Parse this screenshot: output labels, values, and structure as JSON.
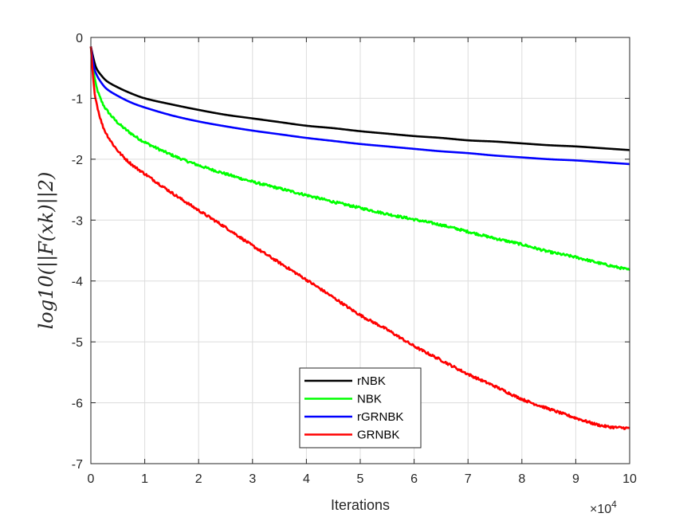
{
  "chart_data": {
    "type": "line",
    "xlabel": "Iterations",
    "ylabel": "log10(||F(xk)||2)",
    "x_exponent_label": "×10",
    "x_exponent_power": "4",
    "xlim": [
      0,
      10
    ],
    "ylim": [
      -7,
      0
    ],
    "xticks": [
      "0",
      "1",
      "2",
      "3",
      "4",
      "5",
      "6",
      "7",
      "8",
      "9",
      "10"
    ],
    "yticks": [
      "0",
      "-1",
      "-2",
      "-3",
      "-4",
      "-5",
      "-6",
      "-7"
    ],
    "grid": true,
    "legend_position": "bottom-center",
    "x": [
      0,
      0.05,
      0.1,
      0.2,
      0.3,
      0.5,
      0.75,
      1,
      1.5,
      2,
      2.5,
      3,
      3.5,
      4,
      4.5,
      5,
      5.5,
      6,
      6.5,
      7,
      7.5,
      8,
      8.5,
      9,
      9.5,
      10
    ],
    "series": [
      {
        "name": "rNBK",
        "color": "#000000",
        "noise": 0,
        "values": [
          -0.15,
          -0.35,
          -0.5,
          -0.63,
          -0.72,
          -0.82,
          -0.92,
          -1.0,
          -1.1,
          -1.19,
          -1.27,
          -1.33,
          -1.39,
          -1.45,
          -1.49,
          -1.54,
          -1.58,
          -1.62,
          -1.65,
          -1.69,
          -1.71,
          -1.74,
          -1.77,
          -1.79,
          -1.82,
          -1.85
        ]
      },
      {
        "name": "NBK",
        "color": "#00ff00",
        "noise": 0.02,
        "values": [
          -0.15,
          -0.55,
          -0.8,
          -1.05,
          -1.2,
          -1.4,
          -1.58,
          -1.72,
          -1.93,
          -2.1,
          -2.24,
          -2.37,
          -2.48,
          -2.59,
          -2.7,
          -2.8,
          -2.9,
          -2.99,
          -3.08,
          -3.19,
          -3.3,
          -3.4,
          -3.52,
          -3.61,
          -3.72,
          -3.82
        ]
      },
      {
        "name": "rGRNBK",
        "color": "#0000ff",
        "noise": 0,
        "values": [
          -0.15,
          -0.45,
          -0.6,
          -0.75,
          -0.85,
          -0.96,
          -1.07,
          -1.15,
          -1.28,
          -1.38,
          -1.46,
          -1.53,
          -1.59,
          -1.65,
          -1.7,
          -1.75,
          -1.79,
          -1.83,
          -1.87,
          -1.9,
          -1.94,
          -1.97,
          -2.0,
          -2.02,
          -2.05,
          -2.08
        ]
      },
      {
        "name": "GRNBK",
        "color": "#ff0000",
        "noise": 0.02,
        "values": [
          -0.15,
          -0.75,
          -1.05,
          -1.4,
          -1.6,
          -1.86,
          -2.08,
          -2.24,
          -2.55,
          -2.84,
          -3.12,
          -3.42,
          -3.7,
          -3.98,
          -4.27,
          -4.56,
          -4.8,
          -5.07,
          -5.3,
          -5.53,
          -5.73,
          -5.94,
          -6.1,
          -6.25,
          -6.38,
          -6.42
        ]
      }
    ]
  }
}
